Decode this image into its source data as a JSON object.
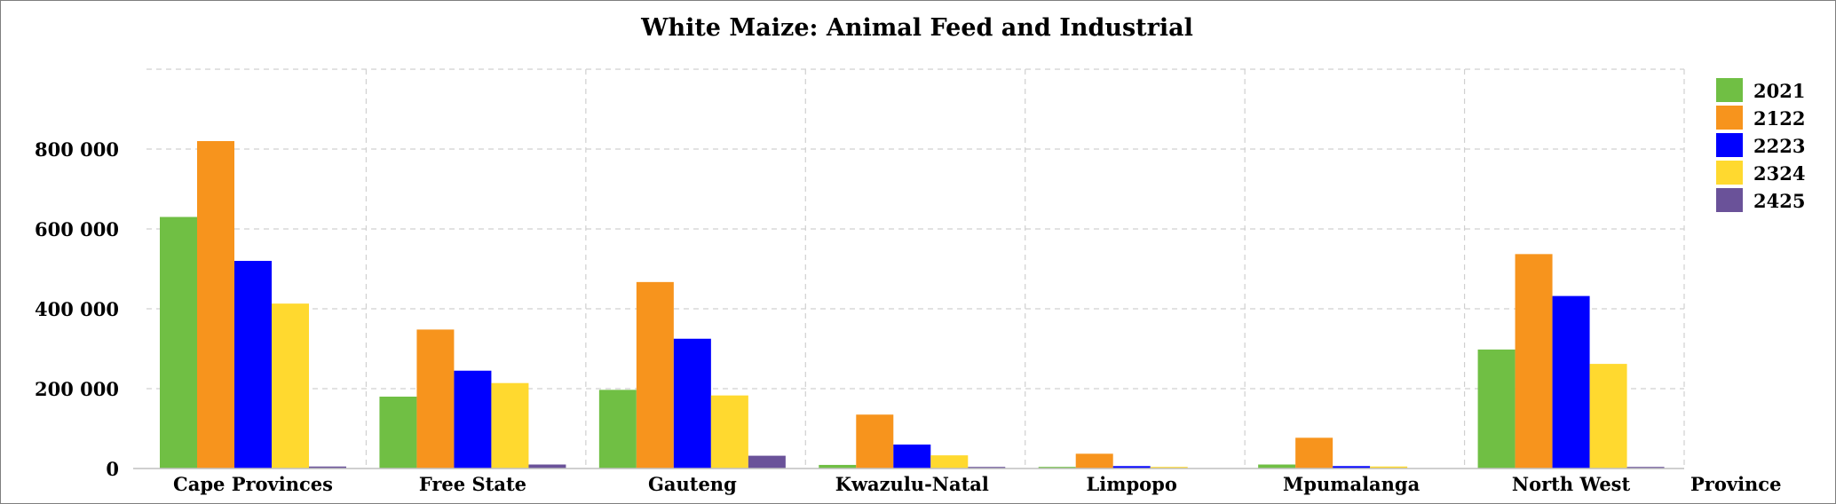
{
  "chart_data": {
    "type": "bar",
    "title": "White Maize: Animal Feed and Industrial",
    "xlabel": "Province",
    "ylabel": "",
    "ylim": [
      0,
      1000000
    ],
    "yticks": [
      0,
      200000,
      400000,
      600000,
      800000
    ],
    "ytick_labels": [
      "0",
      "200 000",
      "400 000",
      "600 000",
      "800 000"
    ],
    "grid": true,
    "legend_position": "top-right",
    "categories": [
      "Cape Provinces",
      "Free State",
      "Gauteng",
      "Kwazulu-Natal",
      "Limpopo",
      "Mpumalanga",
      "North West"
    ],
    "series": [
      {
        "name": "2021",
        "color": "#70bf44",
        "values": [
          630000,
          180000,
          197000,
          9000,
          4000,
          10000,
          298000
        ]
      },
      {
        "name": "2122",
        "color": "#f7941d",
        "values": [
          820000,
          348000,
          467000,
          135000,
          37000,
          77000,
          537000
        ]
      },
      {
        "name": "2223",
        "color": "#0000ff",
        "values": [
          520000,
          245000,
          325000,
          60000,
          6000,
          6000,
          432000
        ]
      },
      {
        "name": "2324",
        "color": "#ffd92f",
        "values": [
          413000,
          214000,
          183000,
          33000,
          4000,
          5000,
          262000
        ]
      },
      {
        "name": "2425",
        "color": "#6a5299",
        "values": [
          5000,
          10000,
          32000,
          4000,
          0,
          0,
          4000
        ]
      }
    ]
  }
}
